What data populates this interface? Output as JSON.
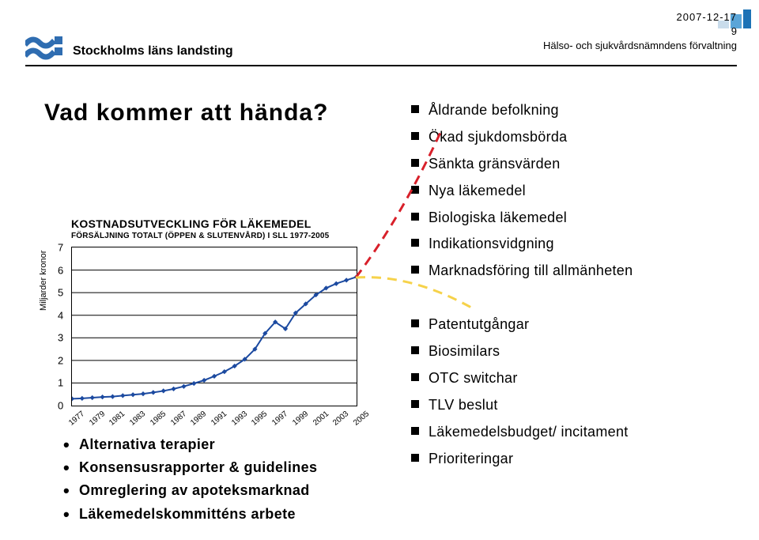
{
  "header": {
    "date": "2007-12-17",
    "page_number": "9",
    "subtitle": "Hälso- och sjukvårdsnämndens förvaltning"
  },
  "logo": {
    "text": "Stockholms läns landsting"
  },
  "title": "Vad kommer att hända?",
  "chart": {
    "title": "KOSTNADSUTVECKLING FÖR LÄKEMEDEL",
    "subtitle": "FÖRSÄLJNING TOTALT (ÖPPEN & SLUTENVÅRD) I SLL 1977-2005",
    "ylabel": "Miljarder kronor",
    "ylim": [
      0,
      7
    ],
    "ytick_step": 1,
    "x_labels": [
      "1977",
      "1979",
      "1981",
      "1983",
      "1985",
      "1987",
      "1989",
      "1991",
      "1993",
      "1995",
      "1997",
      "1999",
      "2001",
      "2003",
      "2005"
    ],
    "x_tick_every": 1,
    "values": [
      0.3,
      0.32,
      0.35,
      0.38,
      0.4,
      0.44,
      0.48,
      0.52,
      0.58,
      0.65,
      0.74,
      0.85,
      0.98,
      1.12,
      1.3,
      1.5,
      1.75,
      2.05,
      2.5,
      3.2,
      3.7,
      3.4,
      4.1,
      4.5,
      4.9,
      5.2,
      5.4,
      5.55,
      5.7
    ],
    "line_color": "#1c4aa0",
    "marker": "diamond",
    "marker_size": 5,
    "border_color": "#000000",
    "background_color": "#ffffff",
    "red_dash_color": "#d8202a",
    "yellow_dash_color": "#f6d24a"
  },
  "right_bullets_top": [
    "Åldrande befolkning",
    "Ökad sjukdomsbörda",
    "Sänkta gränsvärden",
    "Nya läkemedel",
    "Biologiska läkemedel",
    "Indikationsvidgning",
    "Marknadsföring till allmänheten"
  ],
  "right_bullets_bottom": [
    "Patentutgångar",
    "Biosimilars",
    "OTC switchar",
    "TLV beslut",
    "Läkemedelsbudget/ incitament",
    "Prioriteringar"
  ],
  "bottom_bullets": [
    "Alternativa terapier",
    "Konsensusrapporter & guidelines",
    "Omreglering av apoteksmarknad",
    "Läkemedelskommitténs arbete"
  ],
  "colors": {
    "accent_blue": "#1c72b6",
    "logo_blue": "#2f6db1"
  }
}
